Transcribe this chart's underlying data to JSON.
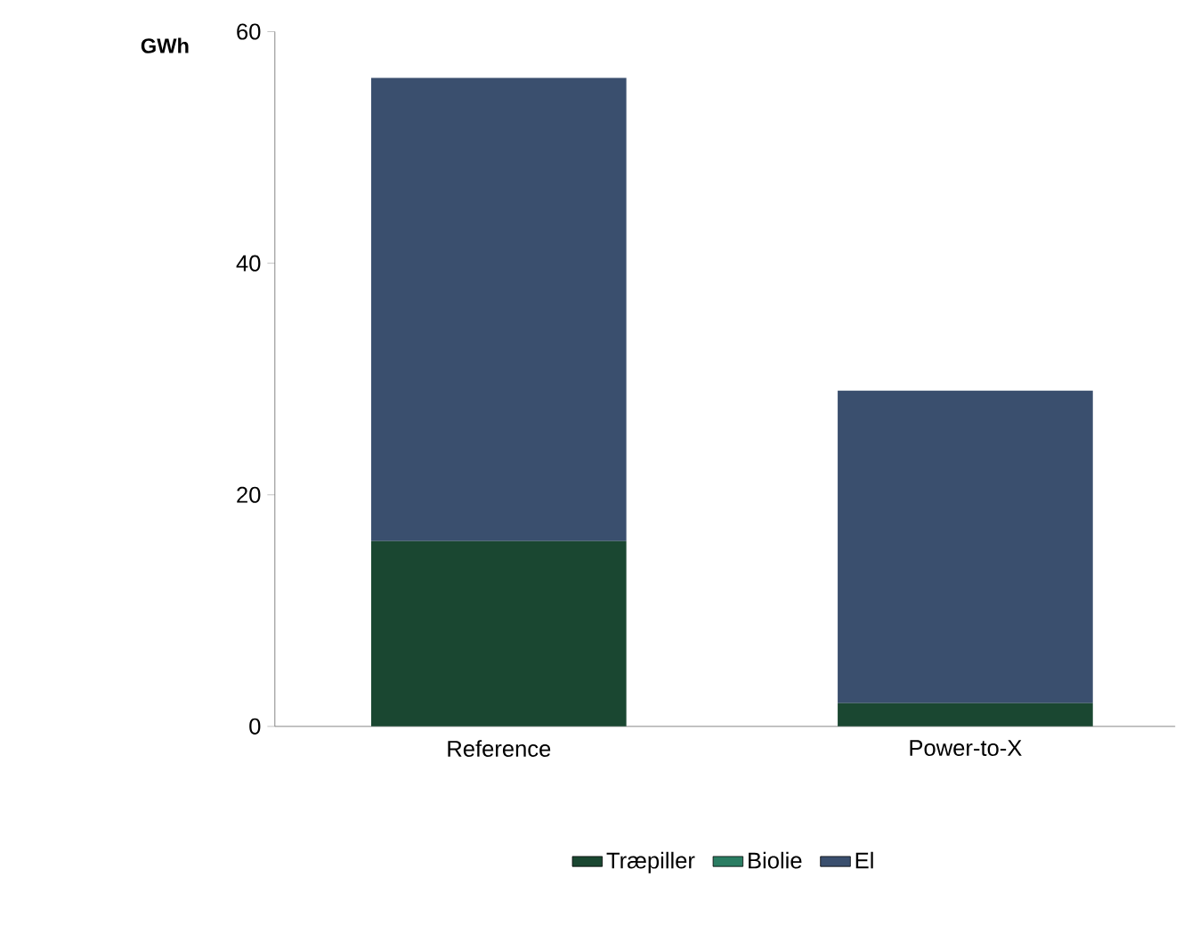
{
  "chart_data": {
    "type": "bar",
    "stacked": true,
    "ylabel": "GWh",
    "categories": [
      "Reference",
      "Power-to-X"
    ],
    "series": [
      {
        "name": "Træpiller",
        "color": "#1a4731",
        "values": [
          16,
          2
        ]
      },
      {
        "name": "Biolie",
        "color": "#2a7d62",
        "values": [
          0,
          0
        ]
      },
      {
        "name": "El",
        "color": "#3a4f6e",
        "values": [
          40,
          27
        ]
      }
    ],
    "ylim": [
      0,
      60
    ],
    "yticks": [
      0,
      20,
      40,
      60
    ],
    "grid": false,
    "legend": "bottom"
  }
}
